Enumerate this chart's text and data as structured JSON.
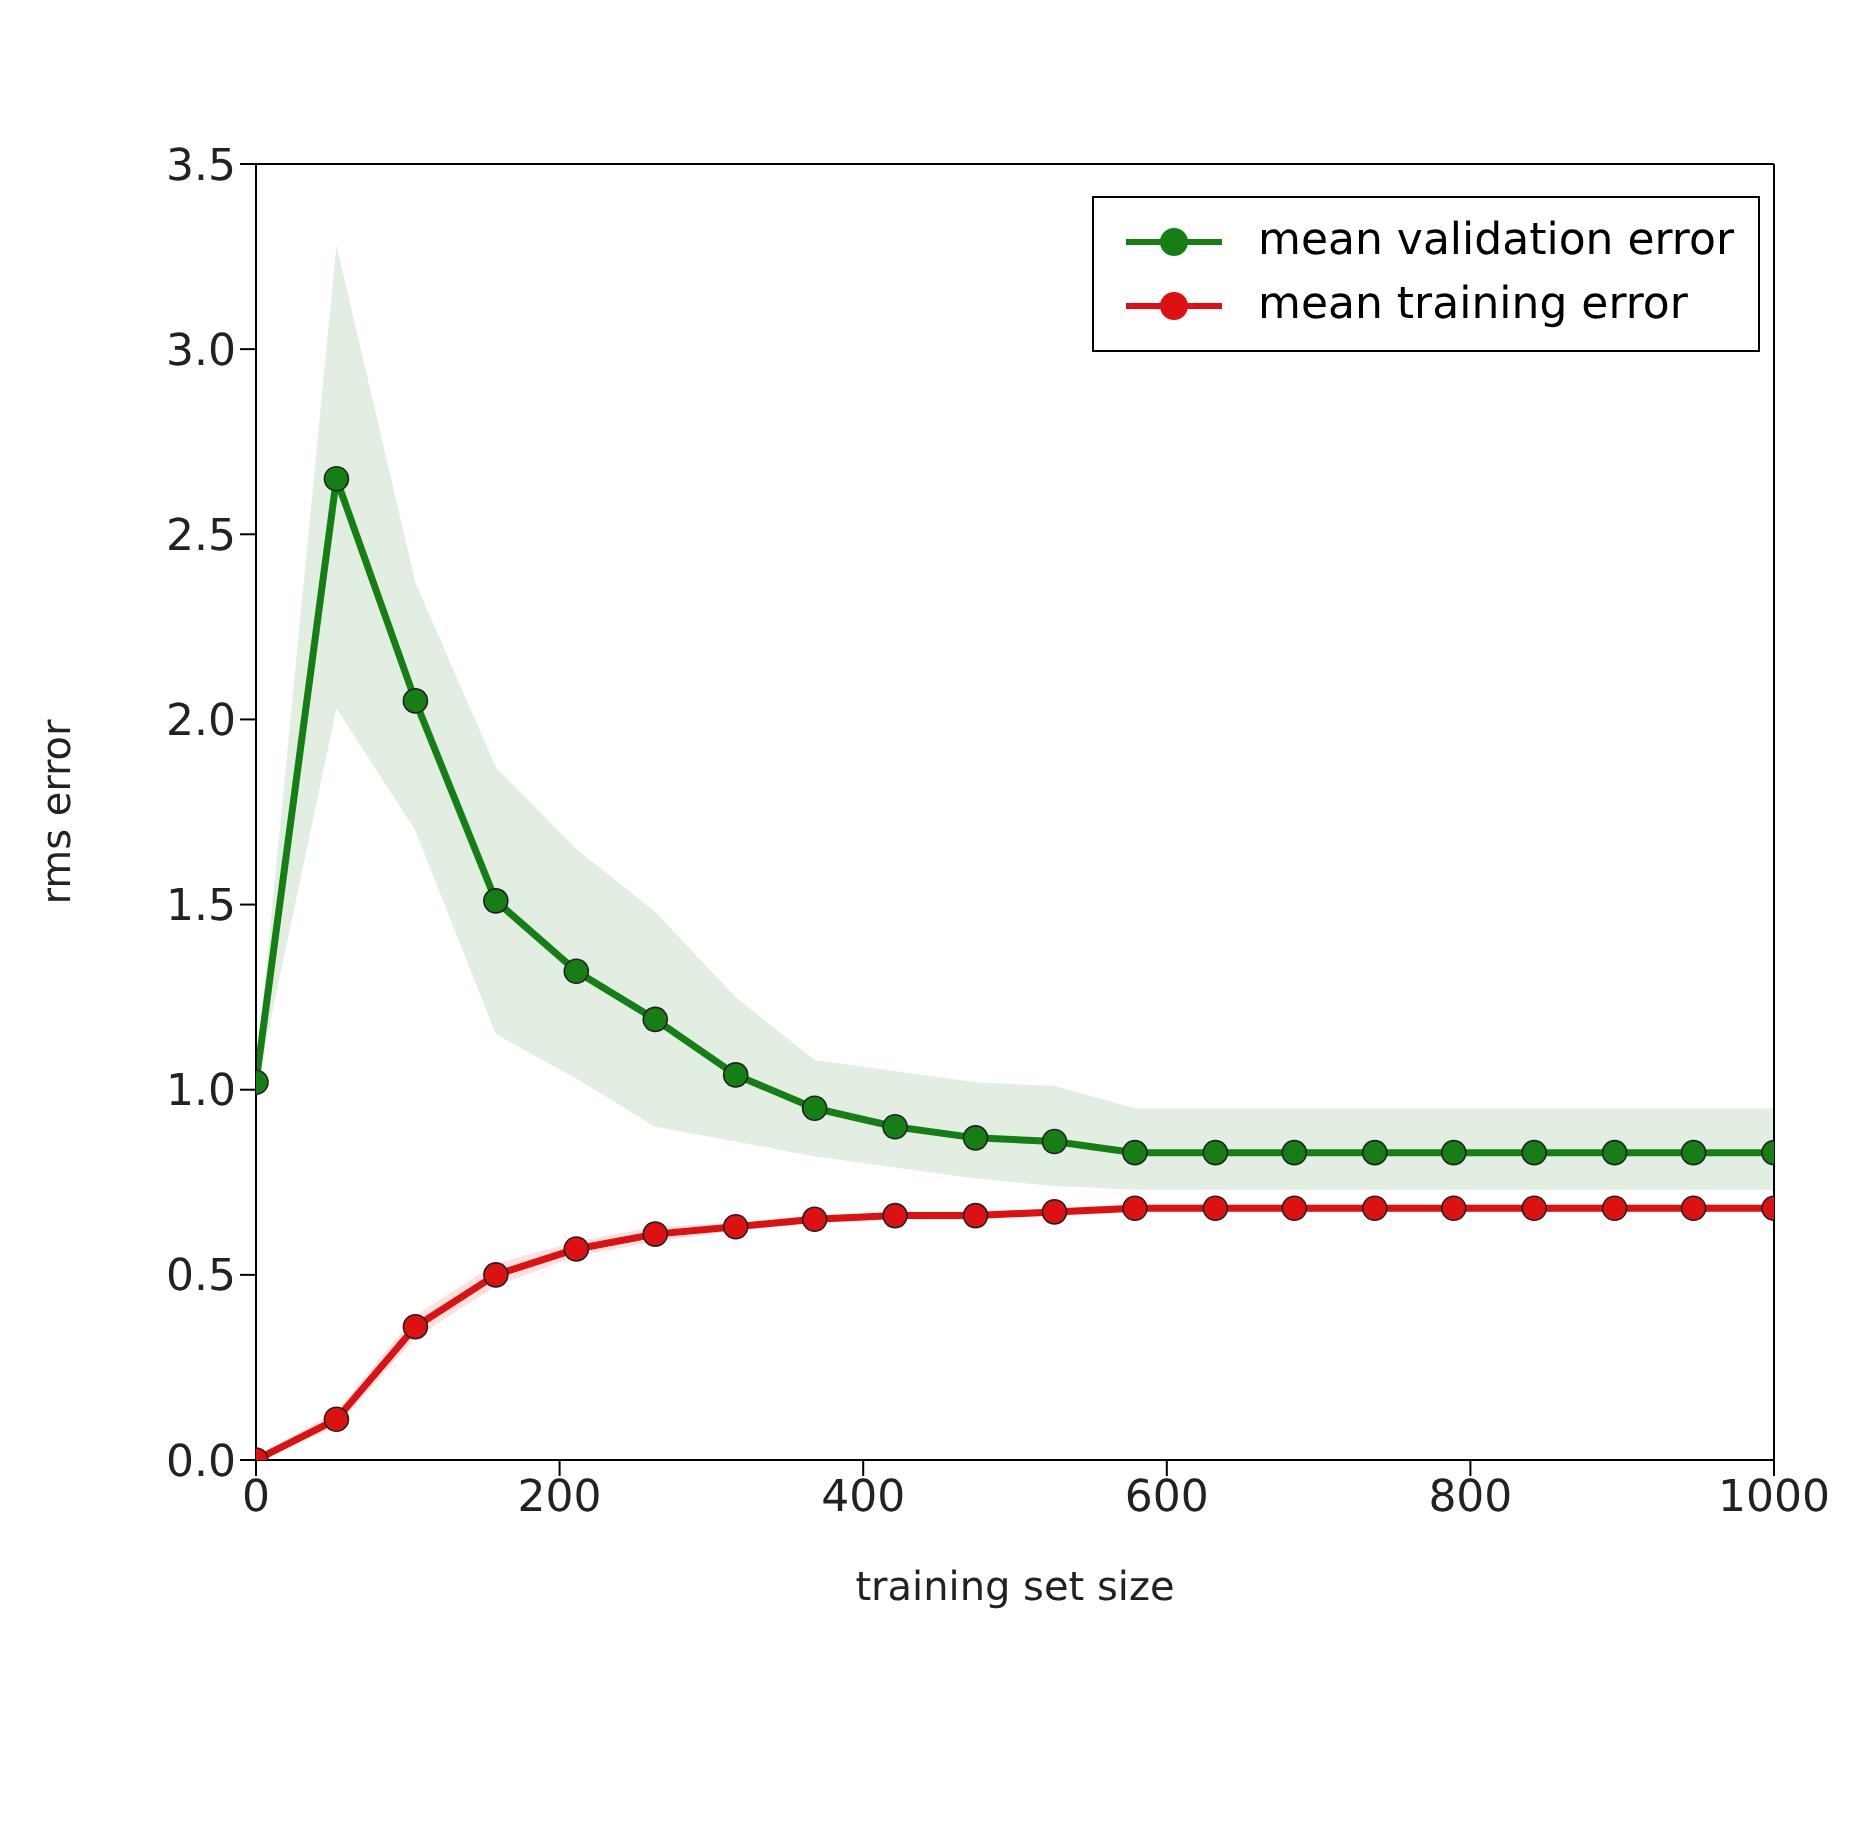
{
  "chart_data": {
    "type": "line",
    "xlabel": "training set size",
    "ylabel": "rms error",
    "x": [
      0,
      53,
      105,
      158,
      211,
      263,
      316,
      368,
      421,
      474,
      526,
      579,
      632,
      684,
      737,
      789,
      842,
      895,
      947,
      1000
    ],
    "series": [
      {
        "name": "mean validation error",
        "color": "#157f15",
        "values": [
          1.02,
          2.65,
          2.05,
          1.51,
          1.32,
          1.19,
          1.04,
          0.95,
          0.9,
          0.87,
          0.86,
          0.83,
          0.83,
          0.83,
          0.83,
          0.83,
          0.83,
          0.83,
          0.83,
          0.83
        ],
        "lower": [
          1.0,
          2.03,
          1.7,
          1.15,
          1.03,
          0.9,
          0.86,
          0.82,
          0.79,
          0.76,
          0.74,
          0.73,
          0.73,
          0.73,
          0.73,
          0.73,
          0.73,
          0.73,
          0.73,
          0.73
        ],
        "upper": [
          1.04,
          3.28,
          2.37,
          1.87,
          1.65,
          1.48,
          1.25,
          1.08,
          1.05,
          1.02,
          1.01,
          0.95,
          0.95,
          0.95,
          0.95,
          0.95,
          0.95,
          0.95,
          0.95,
          0.95
        ]
      },
      {
        "name": "mean training error",
        "color": "#dd1111",
        "values": [
          0.0,
          0.11,
          0.36,
          0.5,
          0.57,
          0.61,
          0.63,
          0.65,
          0.66,
          0.66,
          0.67,
          0.68,
          0.68,
          0.68,
          0.68,
          0.68,
          0.68,
          0.68,
          0.68,
          0.68
        ],
        "lower": [
          0.0,
          0.09,
          0.33,
          0.47,
          0.55,
          0.59,
          0.62,
          0.64,
          0.65,
          0.65,
          0.66,
          0.67,
          0.67,
          0.67,
          0.67,
          0.67,
          0.67,
          0.67,
          0.67,
          0.67
        ],
        "upper": [
          0.01,
          0.13,
          0.39,
          0.53,
          0.59,
          0.63,
          0.64,
          0.66,
          0.67,
          0.67,
          0.68,
          0.69,
          0.69,
          0.69,
          0.69,
          0.69,
          0.69,
          0.69,
          0.69,
          0.69
        ]
      }
    ],
    "xlim": [
      0,
      1000
    ],
    "xticks": [
      0,
      200,
      400,
      600,
      800,
      1000
    ],
    "ylim": [
      0,
      3.5
    ],
    "yticks": [
      {
        "value": 0,
        "label": "0.0"
      },
      0.5,
      {
        "value": 1,
        "label": "1.0"
      },
      1.5,
      {
        "value": 2,
        "label": "2.0"
      },
      2.5,
      {
        "value": 3,
        "label": "3.0"
      },
      3.5
    ],
    "legend": "top right",
    "marker": "circle",
    "line_style": "solid",
    "grid": false
  }
}
